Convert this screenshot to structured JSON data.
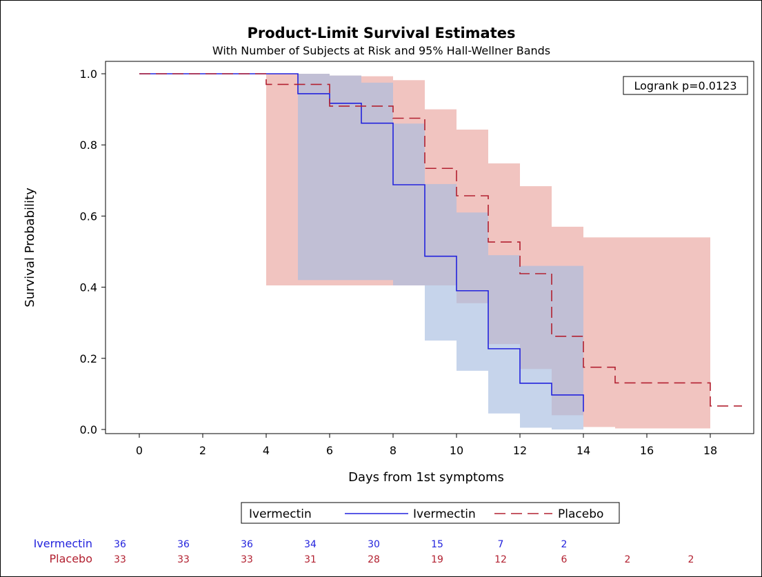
{
  "chart_data": {
    "type": "line",
    "title": "Product-Limit Survival Estimates",
    "subtitle": "With Number of Subjects at Risk and 95% Hall-Wellner Bands",
    "xlabel": "Days from 1st symptoms",
    "ylabel": "Survival Probability",
    "xlim": [
      -1,
      19
    ],
    "ylim": [
      0,
      1
    ],
    "x_ticks": [
      0,
      2,
      4,
      6,
      8,
      10,
      12,
      14,
      16,
      18
    ],
    "y_ticks": [
      0.0,
      0.2,
      0.4,
      0.6,
      0.8,
      1.0
    ],
    "y_tick_labels": [
      "0.0",
      "0.2",
      "0.4",
      "0.6",
      "0.8",
      "1.0"
    ],
    "annotation": "Logrank p=0.0123",
    "legend": {
      "placement": "bottom",
      "title": "Ivermectin",
      "entries": [
        "Ivermectin",
        "Placebo"
      ]
    },
    "series": [
      {
        "name": "Ivermectin",
        "color": "#2222dd",
        "dash": "solid",
        "steps": [
          [
            0,
            1.0
          ],
          [
            5,
            0.944
          ],
          [
            6,
            0.917
          ],
          [
            7,
            0.861
          ],
          [
            8,
            0.688
          ],
          [
            9,
            0.487
          ],
          [
            10,
            0.39
          ],
          [
            11,
            0.227
          ],
          [
            12,
            0.13
          ],
          [
            13,
            0.097
          ]
        ],
        "end_x": 14,
        "end_y": 0.05,
        "band_color": "#a7bde0",
        "band": [
          {
            "x0": 5,
            "x1": 6,
            "lo": 0.42,
            "hi": 1.0
          },
          {
            "x0": 6,
            "x1": 7,
            "lo": 0.42,
            "hi": 0.995
          },
          {
            "x0": 7,
            "x1": 8,
            "lo": 0.42,
            "hi": 0.975
          },
          {
            "x0": 8,
            "x1": 9,
            "lo": 0.405,
            "hi": 0.86
          },
          {
            "x0": 9,
            "x1": 10,
            "lo": 0.25,
            "hi": 0.69
          },
          {
            "x0": 10,
            "x1": 11,
            "lo": 0.165,
            "hi": 0.61
          },
          {
            "x0": 11,
            "x1": 12,
            "lo": 0.045,
            "hi": 0.49
          },
          {
            "x0": 12,
            "x1": 13,
            "lo": 0.005,
            "hi": 0.46
          },
          {
            "x0": 13,
            "x1": 14,
            "lo": 0.0,
            "hi": 0.46
          }
        ]
      },
      {
        "name": "Placebo",
        "color": "#b22030",
        "dash": "dashed",
        "steps": [
          [
            0,
            1.0
          ],
          [
            4,
            0.97
          ],
          [
            6,
            0.909
          ],
          [
            8,
            0.875
          ],
          [
            9,
            0.734
          ],
          [
            10,
            0.657
          ],
          [
            11,
            0.527
          ],
          [
            12,
            0.438
          ],
          [
            13,
            0.262
          ],
          [
            14,
            0.175
          ],
          [
            15,
            0.131
          ],
          [
            18,
            0.066
          ]
        ],
        "end_x": 19,
        "band_color": "#eeb5b0",
        "band": [
          {
            "x0": 4,
            "x1": 6,
            "lo": 0.405,
            "hi": 1.0
          },
          {
            "x0": 6,
            "x1": 7,
            "lo": 0.405,
            "hi": 0.995
          },
          {
            "x0": 7,
            "x1": 8,
            "lo": 0.405,
            "hi": 0.993
          },
          {
            "x0": 8,
            "x1": 9,
            "lo": 0.405,
            "hi": 0.982
          },
          {
            "x0": 9,
            "x1": 10,
            "lo": 0.405,
            "hi": 0.9
          },
          {
            "x0": 10,
            "x1": 11,
            "lo": 0.355,
            "hi": 0.843
          },
          {
            "x0": 11,
            "x1": 12,
            "lo": 0.24,
            "hi": 0.748
          },
          {
            "x0": 12,
            "x1": 13,
            "lo": 0.17,
            "hi": 0.684
          },
          {
            "x0": 13,
            "x1": 14,
            "lo": 0.04,
            "hi": 0.57
          },
          {
            "x0": 14,
            "x1": 15,
            "lo": 0.007,
            "hi": 0.54
          },
          {
            "x0": 15,
            "x1": 18,
            "lo": 0.003,
            "hi": 0.54
          }
        ]
      }
    ],
    "risk_table": {
      "x": [
        0,
        2,
        4,
        6,
        8,
        10,
        12,
        14,
        16,
        18
      ],
      "rows": [
        {
          "label": "Ivermectin",
          "color": "#2222dd",
          "values": [
            "36",
            "36",
            "36",
            "34",
            "30",
            "15",
            "7",
            "2",
            "",
            ""
          ]
        },
        {
          "label": "Placebo",
          "color": "#b22030",
          "values": [
            "33",
            "33",
            "33",
            "31",
            "28",
            "19",
            "12",
            "6",
            "2",
            "2"
          ]
        }
      ]
    }
  }
}
